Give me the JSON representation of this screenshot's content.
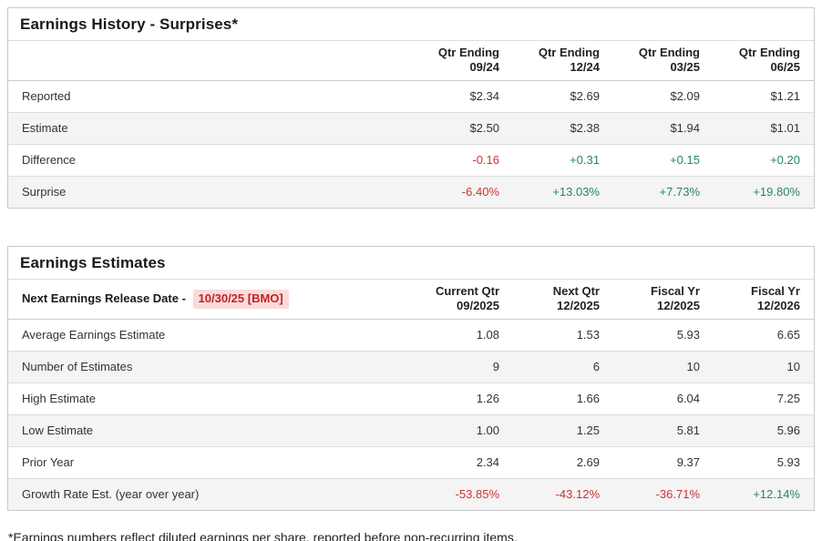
{
  "colors": {
    "negative_text": "#cc3333",
    "positive_text": "#2a8659",
    "release_badge_text": "#c42222",
    "release_badge_bg": "#fadbdb",
    "stripe_row_bg": "#f4f4f4",
    "table_border": "#c9c9c9"
  },
  "history": {
    "title": "Earnings History - Surprises*",
    "columns": [
      {
        "line1": "Qtr Ending",
        "line2": "09/24"
      },
      {
        "line1": "Qtr Ending",
        "line2": "12/24"
      },
      {
        "line1": "Qtr Ending",
        "line2": "03/25"
      },
      {
        "line1": "Qtr Ending",
        "line2": "06/25"
      }
    ],
    "rows": [
      {
        "label": "Reported",
        "values": [
          "$2.34",
          "$2.69",
          "$2.09",
          "$1.21"
        ]
      },
      {
        "label": "Estimate",
        "values": [
          "$2.50",
          "$2.38",
          "$1.94",
          "$1.01"
        ]
      },
      {
        "label": "Difference",
        "values": [
          "-0.16",
          "+0.31",
          "+0.15",
          "+0.20"
        ]
      },
      {
        "label": "Surprise",
        "values": [
          "-6.40%",
          "+13.03%",
          "+7.73%",
          "+19.80%"
        ]
      }
    ]
  },
  "estimates": {
    "title": "Earnings Estimates",
    "release_label": "Next Earnings Release Date -",
    "release_date": "10/30/25 [BMO]",
    "columns": [
      {
        "line1": "Current Qtr",
        "line2": "09/2025"
      },
      {
        "line1": "Next Qtr",
        "line2": "12/2025"
      },
      {
        "line1": "Fiscal Yr",
        "line2": "12/2025"
      },
      {
        "line1": "Fiscal Yr",
        "line2": "12/2026"
      }
    ],
    "rows": [
      {
        "label": "Average Earnings Estimate",
        "values": [
          "1.08",
          "1.53",
          "5.93",
          "6.65"
        ]
      },
      {
        "label": "Number of Estimates",
        "values": [
          "9",
          "6",
          "10",
          "10"
        ]
      },
      {
        "label": "High Estimate",
        "values": [
          "1.26",
          "1.66",
          "6.04",
          "7.25"
        ]
      },
      {
        "label": "Low Estimate",
        "values": [
          "1.00",
          "1.25",
          "5.81",
          "5.96"
        ]
      },
      {
        "label": "Prior Year",
        "values": [
          "2.34",
          "2.69",
          "9.37",
          "5.93"
        ]
      },
      {
        "label": "Growth Rate Est. (year over year)",
        "values": [
          "-53.85%",
          "-43.12%",
          "-36.71%",
          "+12.14%"
        ]
      }
    ]
  },
  "footnote": "*Earnings numbers reflect diluted earnings per share, reported before non-recurring items."
}
